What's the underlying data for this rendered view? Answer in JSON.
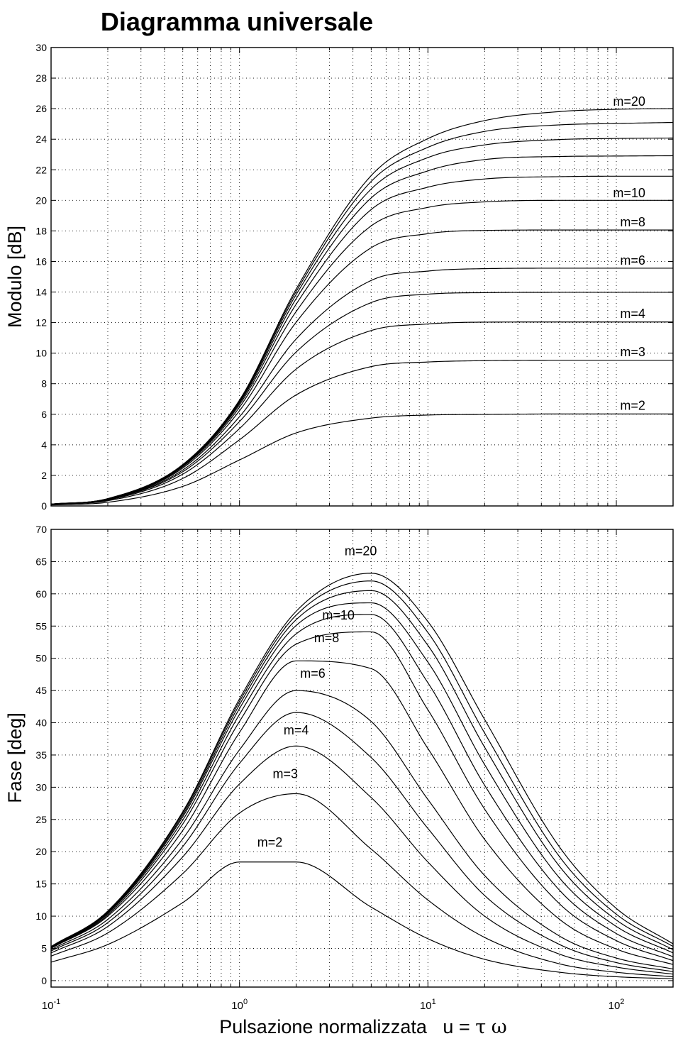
{
  "title": "Diagramma universale",
  "xlabel_main": "Pulsazione normalizzata   u = ",
  "xlabel_tau": "τ",
  "xlabel_omega": "ω",
  "colors": {
    "curve": "#000000",
    "grid": "#000000",
    "background": "#ffffff"
  },
  "chart_data": [
    {
      "type": "line",
      "ylabel": "Modulo [dB]",
      "xscale": "log",
      "xlim": [
        0.1,
        200
      ],
      "ylim": [
        0,
        30
      ],
      "yticks": [
        0,
        2,
        4,
        6,
        8,
        10,
        12,
        14,
        16,
        18,
        20,
        22,
        24,
        26,
        28,
        30
      ],
      "xticks": [
        "10^-1",
        "10^0",
        "10^1",
        "10^2"
      ],
      "grid": true,
      "x": [
        0.1,
        0.2,
        0.5,
        1,
        2,
        5,
        10,
        20,
        50,
        100,
        200
      ],
      "series": [
        {
          "m": 2,
          "values": [
            0.06,
            0.24,
            1.28,
            3.01,
            4.78,
            5.75,
            5.95,
            5.99,
            6.02,
            6.02,
            6.02
          ]
        },
        {
          "m": 3,
          "values": [
            0.09,
            0.34,
            1.8,
            4.33,
            7.27,
            9.12,
            9.42,
            9.51,
            9.54,
            9.54,
            9.54
          ]
        },
        {
          "m": 4,
          "values": [
            0.1,
            0.38,
            2.08,
            5.06,
            8.96,
            11.48,
            11.91,
            12.03,
            12.04,
            12.04,
            12.04
          ]
        },
        {
          "m": 5,
          "values": [
            0.1,
            0.41,
            2.24,
            5.52,
            10.08,
            13.31,
            13.86,
            13.96,
            13.98,
            13.98,
            13.98
          ]
        },
        {
          "m": 6,
          "values": [
            0.11,
            0.43,
            2.35,
            5.84,
            10.93,
            14.76,
            15.37,
            15.53,
            15.56,
            15.56,
            15.56
          ]
        },
        {
          "m": 8,
          "values": [
            0.11,
            0.44,
            2.48,
            6.23,
            12.03,
            16.9,
            17.82,
            18.03,
            18.06,
            18.06,
            18.06
          ]
        },
        {
          "m": 10,
          "values": [
            0.11,
            0.46,
            2.56,
            6.46,
            12.73,
            18.33,
            19.54,
            19.9,
            20.0,
            20.0,
            20.0
          ]
        },
        {
          "m": 12,
          "values": [
            0.12,
            0.46,
            2.61,
            6.62,
            13.21,
            19.4,
            20.86,
            21.4,
            21.55,
            21.58,
            21.58
          ]
        },
        {
          "m": 14,
          "values": [
            0.12,
            0.47,
            2.65,
            6.73,
            13.57,
            20.16,
            21.93,
            22.67,
            22.87,
            22.9,
            22.92
          ]
        },
        {
          "m": 16,
          "values": [
            0.12,
            0.47,
            2.68,
            6.81,
            13.84,
            20.74,
            22.8,
            23.63,
            23.98,
            24.05,
            24.08
          ]
        },
        {
          "m": 18,
          "values": [
            0.12,
            0.48,
            2.7,
            6.88,
            14.04,
            21.24,
            23.47,
            24.51,
            24.94,
            25.03,
            25.1
          ]
        },
        {
          "m": 20,
          "values": [
            0.12,
            0.48,
            2.71,
            6.93,
            14.2,
            21.62,
            24.04,
            25.22,
            25.81,
            25.96,
            26.0
          ]
        }
      ],
      "annotations": [
        {
          "text": "m=20",
          "x": 145,
          "y": 26.2
        },
        {
          "text": "m=10",
          "x": 145,
          "y": 20.2
        },
        {
          "text": "m=8",
          "x": 145,
          "y": 18.3
        },
        {
          "text": "m=6",
          "x": 145,
          "y": 15.8
        },
        {
          "text": "m=4",
          "x": 145,
          "y": 12.3
        },
        {
          "text": "m=3",
          "x": 145,
          "y": 9.8
        },
        {
          "text": "m=2",
          "x": 145,
          "y": 6.3
        }
      ]
    },
    {
      "type": "line",
      "ylabel": "Fase [deg]",
      "xscale": "log",
      "xlim": [
        0.1,
        200
      ],
      "ylim": [
        -1,
        70
      ],
      "yticks": [
        0,
        5,
        10,
        15,
        20,
        25,
        30,
        35,
        40,
        45,
        50,
        55,
        60,
        65,
        70
      ],
      "xticks": [
        "10^-1",
        "10^0",
        "10^1",
        "10^2"
      ],
      "grid": true,
      "x": [
        0.1,
        0.2,
        0.5,
        1,
        2,
        5,
        10,
        20,
        50,
        100,
        200
      ],
      "series": [
        {
          "m": 2,
          "values": [
            2.86,
            5.6,
            12.1,
            18.4,
            18.4,
            11.4,
            6.5,
            3.3,
            1.3,
            0.6,
            0.3
          ]
        },
        {
          "m": 3,
          "values": [
            3.8,
            7.4,
            16.6,
            26.0,
            29.0,
            20.4,
            12.5,
            6.7,
            2.6,
            1.3,
            0.6
          ]
        },
        {
          "m": 4,
          "values": [
            4.3,
            8.4,
            19.2,
            30.5,
            36.4,
            28.4,
            18.4,
            10.0,
            4.1,
            2.1,
            1.0
          ]
        },
        {
          "m": 5,
          "values": [
            4.6,
            9.0,
            20.8,
            33.7,
            41.6,
            34.6,
            23.6,
            13.2,
            5.6,
            2.8,
            1.4
          ]
        },
        {
          "m": 6,
          "values": [
            4.8,
            9.5,
            22.0,
            35.8,
            45.0,
            40.2,
            28.1,
            16.3,
            6.9,
            3.5,
            1.8
          ]
        },
        {
          "m": 8,
          "values": [
            5.0,
            10.0,
            23.3,
            38.5,
            49.6,
            48.4,
            36.0,
            21.9,
            9.5,
            4.9,
            2.5
          ]
        },
        {
          "m": 10,
          "values": [
            5.1,
            10.2,
            24.3,
            40.2,
            52.2,
            54.1,
            42.0,
            26.6,
            11.9,
            6.2,
            3.1
          ]
        },
        {
          "m": 12,
          "values": [
            5.1,
            10.4,
            24.9,
            41.3,
            53.8,
            56.8,
            46.2,
            30.3,
            14.0,
            7.3,
            3.7
          ]
        },
        {
          "m": 14,
          "values": [
            5.2,
            10.5,
            25.4,
            42.2,
            55.1,
            58.6,
            49.4,
            33.5,
            15.9,
            8.4,
            4.3
          ]
        },
        {
          "m": 16,
          "values": [
            5.2,
            10.6,
            25.7,
            42.8,
            56.0,
            60.5,
            52.0,
            36.2,
            17.7,
            9.4,
            4.8
          ]
        },
        {
          "m": 18,
          "values": [
            5.2,
            10.7,
            26.0,
            43.3,
            56.7,
            62.0,
            54.0,
            38.4,
            19.2,
            10.3,
            5.3
          ]
        },
        {
          "m": 20,
          "values": [
            5.3,
            10.8,
            26.2,
            43.7,
            57.3,
            63.2,
            55.7,
            40.5,
            20.7,
            11.2,
            5.7
          ]
        }
      ],
      "annotations": [
        {
          "text": "m=20",
          "x": 4.4,
          "y": 66.0
        },
        {
          "text": "m=10",
          "x": 3.35,
          "y": 56.0
        },
        {
          "text": "m=8",
          "x": 2.9,
          "y": 52.5
        },
        {
          "text": "m=6",
          "x": 2.45,
          "y": 47.0
        },
        {
          "text": "m=4",
          "x": 2.0,
          "y": 38.2
        },
        {
          "text": "m=3",
          "x": 1.75,
          "y": 31.4
        },
        {
          "text": "m=2",
          "x": 1.45,
          "y": 20.8
        }
      ]
    }
  ]
}
